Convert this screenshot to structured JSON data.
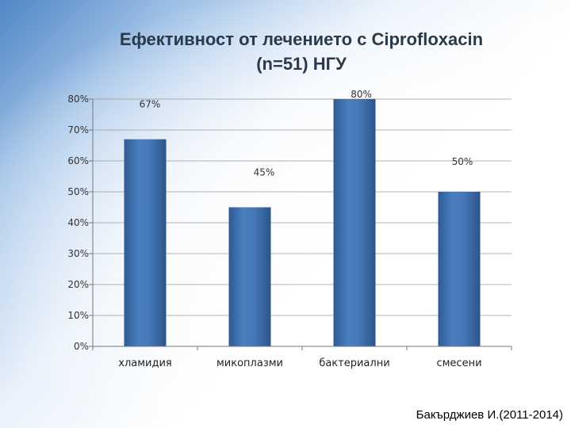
{
  "chart_data": {
    "type": "bar",
    "title": "Ефективност от лечението с Ciprofloxacin (n=51) НГУ",
    "title_lines": [
      "Ефективност от лечението с Ciprofloxacin",
      "(n=51) НГУ"
    ],
    "categories": [
      "хламидия",
      "микоплазми",
      "бактериални",
      "смесени"
    ],
    "values": [
      67,
      45,
      80,
      50
    ],
    "data_labels": [
      "67%",
      "45%",
      "80%",
      "50%"
    ],
    "yticks": [
      "0%",
      "10%",
      "20%",
      "30%",
      "40%",
      "50%",
      "60%",
      "70%",
      "80%"
    ],
    "ylim": [
      0,
      80
    ],
    "grid": true,
    "legend": "none",
    "bar_color": "#3f6fad",
    "xlabel": "",
    "ylabel": ""
  },
  "credit": "Бакърджиев И.(2011-2014)"
}
